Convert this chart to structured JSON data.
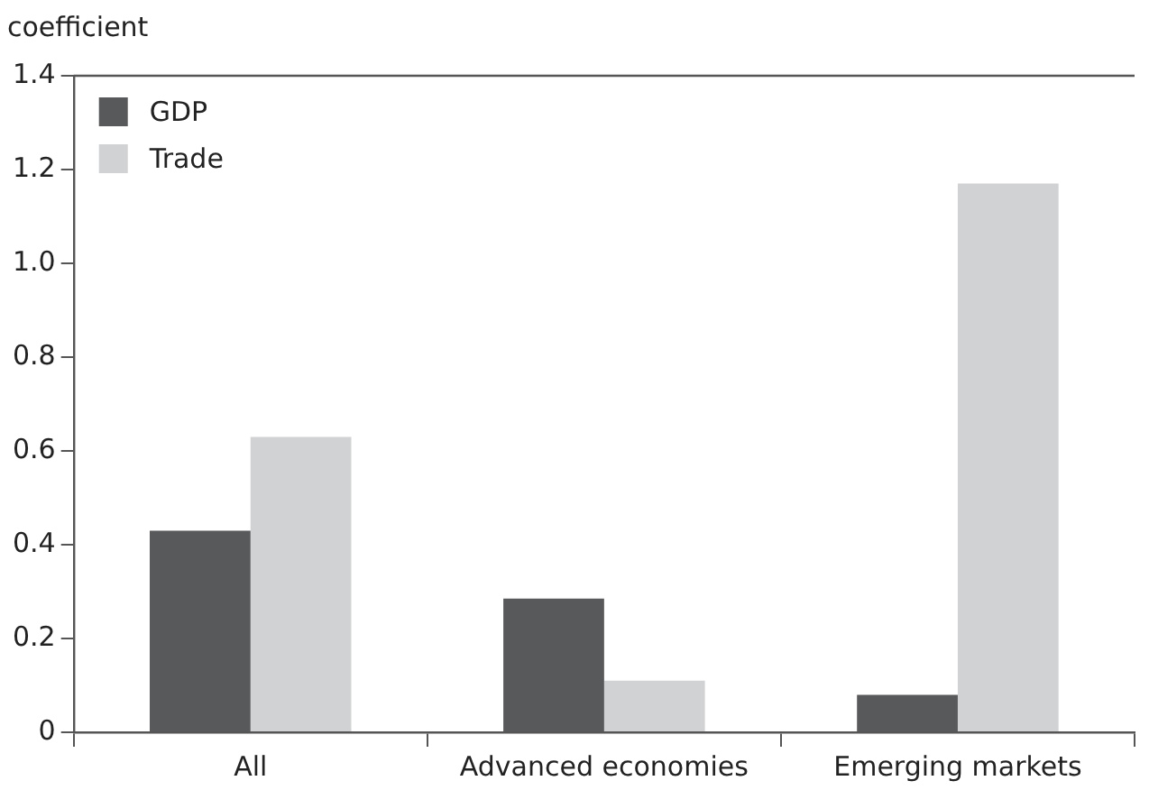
{
  "chart_data": {
    "type": "bar",
    "ylabel": "coefficient",
    "categories": [
      "All",
      "Advanced economies",
      "Emerging markets"
    ],
    "series": [
      {
        "name": "GDP",
        "color": "#58595b",
        "values": [
          0.43,
          0.285,
          0.08
        ]
      },
      {
        "name": "Trade",
        "color": "#d1d2d4",
        "values": [
          0.63,
          0.11,
          1.17
        ]
      }
    ],
    "ylim": [
      0,
      1.4
    ],
    "yticks": [
      0,
      {
        "value": 0.2,
        "label": "0.2"
      },
      {
        "value": 0.4,
        "label": "0.4"
      },
      {
        "value": 0.6,
        "label": "0.6"
      },
      {
        "value": 0.8,
        "label": "0.8"
      },
      {
        "value": 1.0,
        "label": "1.0"
      },
      {
        "value": 1.2,
        "label": "1.2"
      },
      {
        "value": 1.4,
        "label": "1.4"
      }
    ],
    "grid": false,
    "legend": "top left"
  }
}
